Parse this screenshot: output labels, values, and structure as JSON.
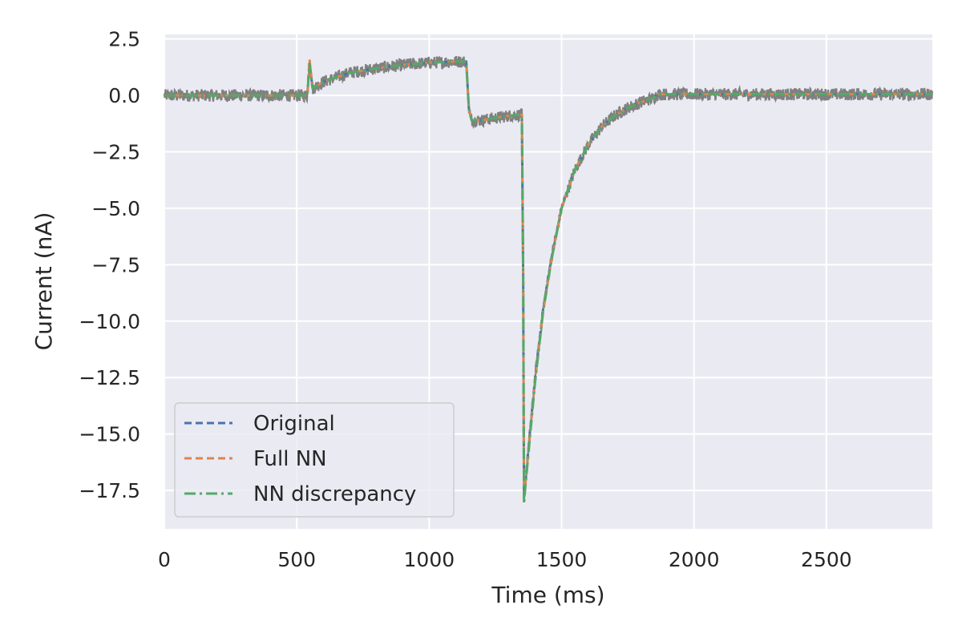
{
  "chart_data": {
    "type": "line",
    "title": "",
    "xlabel": "Time (ms)",
    "ylabel": "Current (nA)",
    "xlim": [
      0,
      2900
    ],
    "ylim": [
      -19.2,
      2.7
    ],
    "x_ticks": [
      0,
      500,
      1000,
      1500,
      2000,
      2500
    ],
    "y_ticks": [
      2.5,
      0.0,
      -2.5,
      -5.0,
      -7.5,
      -10.0,
      -12.5,
      -15.0,
      -17.5
    ],
    "x_tick_labels": [
      "0",
      "500",
      "1000",
      "1500",
      "2000",
      "2500"
    ],
    "y_tick_labels": [
      "2.5",
      "0.0",
      "−2.5",
      "−5.0",
      "−7.5",
      "−10.0",
      "−12.5",
      "−15.0",
      "−17.5"
    ],
    "grid": true,
    "legend_position": "lower-left",
    "background_color": "#eaeaf2",
    "noise_color": "#808080",
    "series": [
      {
        "name": "Original",
        "color": "#4c72b0",
        "dash": "dashed",
        "x": [
          0,
          270,
          300,
          540,
          548,
          560,
          600,
          700,
          800,
          900,
          1000,
          1100,
          1140,
          1150,
          1160,
          1200,
          1250,
          1300,
          1350,
          1355,
          1358,
          1362,
          1380,
          1400,
          1430,
          1460,
          1500,
          1550,
          1600,
          1650,
          1700,
          1750,
          1800,
          1850,
          1860,
          1900,
          2000,
          2200,
          2500,
          2900
        ],
        "y": [
          0.0,
          0.0,
          0.0,
          0.0,
          1.5,
          0.3,
          0.6,
          1.0,
          1.2,
          1.35,
          1.45,
          1.5,
          1.5,
          -0.6,
          -1.1,
          -1.1,
          -1.0,
          -0.9,
          -0.85,
          -8.0,
          -17.7,
          -17.3,
          -15.0,
          -12.5,
          -9.5,
          -7.3,
          -5.0,
          -3.3,
          -2.2,
          -1.4,
          -0.9,
          -0.55,
          -0.3,
          -0.1,
          0.05,
          0.05,
          0.05,
          0.05,
          0.05,
          0.05
        ]
      },
      {
        "name": "Full NN",
        "color": "#dd8452",
        "dash": "dashed",
        "x": [
          0,
          270,
          300,
          540,
          548,
          560,
          600,
          700,
          800,
          900,
          1000,
          1100,
          1140,
          1150,
          1160,
          1200,
          1250,
          1300,
          1350,
          1355,
          1358,
          1362,
          1380,
          1400,
          1430,
          1460,
          1500,
          1550,
          1600,
          1650,
          1700,
          1750,
          1800,
          1850,
          1860,
          1900,
          2000,
          2200,
          2500,
          2900
        ],
        "y": [
          0.0,
          0.0,
          0.0,
          0.0,
          1.6,
          0.3,
          0.6,
          1.0,
          1.2,
          1.35,
          1.45,
          1.5,
          1.5,
          -0.6,
          -1.1,
          -1.1,
          -1.0,
          -0.9,
          -0.85,
          -8.0,
          -17.9,
          -17.4,
          -15.1,
          -12.6,
          -9.6,
          -7.4,
          -5.0,
          -3.3,
          -2.2,
          -1.4,
          -0.9,
          -0.55,
          -0.3,
          -0.1,
          0.05,
          0.05,
          0.05,
          0.05,
          0.05,
          0.05
        ]
      },
      {
        "name": "NN discrepancy",
        "color": "#55a868",
        "dash": "dashdot",
        "x": [
          0,
          270,
          300,
          540,
          548,
          560,
          600,
          700,
          800,
          900,
          1000,
          1100,
          1140,
          1150,
          1160,
          1200,
          1250,
          1300,
          1350,
          1355,
          1358,
          1362,
          1380,
          1400,
          1430,
          1460,
          1500,
          1550,
          1600,
          1650,
          1700,
          1750,
          1800,
          1850,
          1860,
          1900,
          2000,
          2200,
          2500,
          2900
        ],
        "y": [
          0.0,
          0.0,
          0.0,
          0.0,
          1.4,
          0.3,
          0.6,
          1.0,
          1.2,
          1.35,
          1.45,
          1.5,
          1.5,
          -0.6,
          -1.1,
          -1.1,
          -1.0,
          -0.9,
          -0.85,
          -8.0,
          -18.1,
          -17.5,
          -15.2,
          -12.7,
          -9.6,
          -7.4,
          -5.0,
          -3.3,
          -2.2,
          -1.4,
          -0.9,
          -0.55,
          -0.3,
          -0.1,
          0.05,
          0.05,
          0.05,
          0.05,
          0.05,
          0.05
        ]
      }
    ]
  }
}
